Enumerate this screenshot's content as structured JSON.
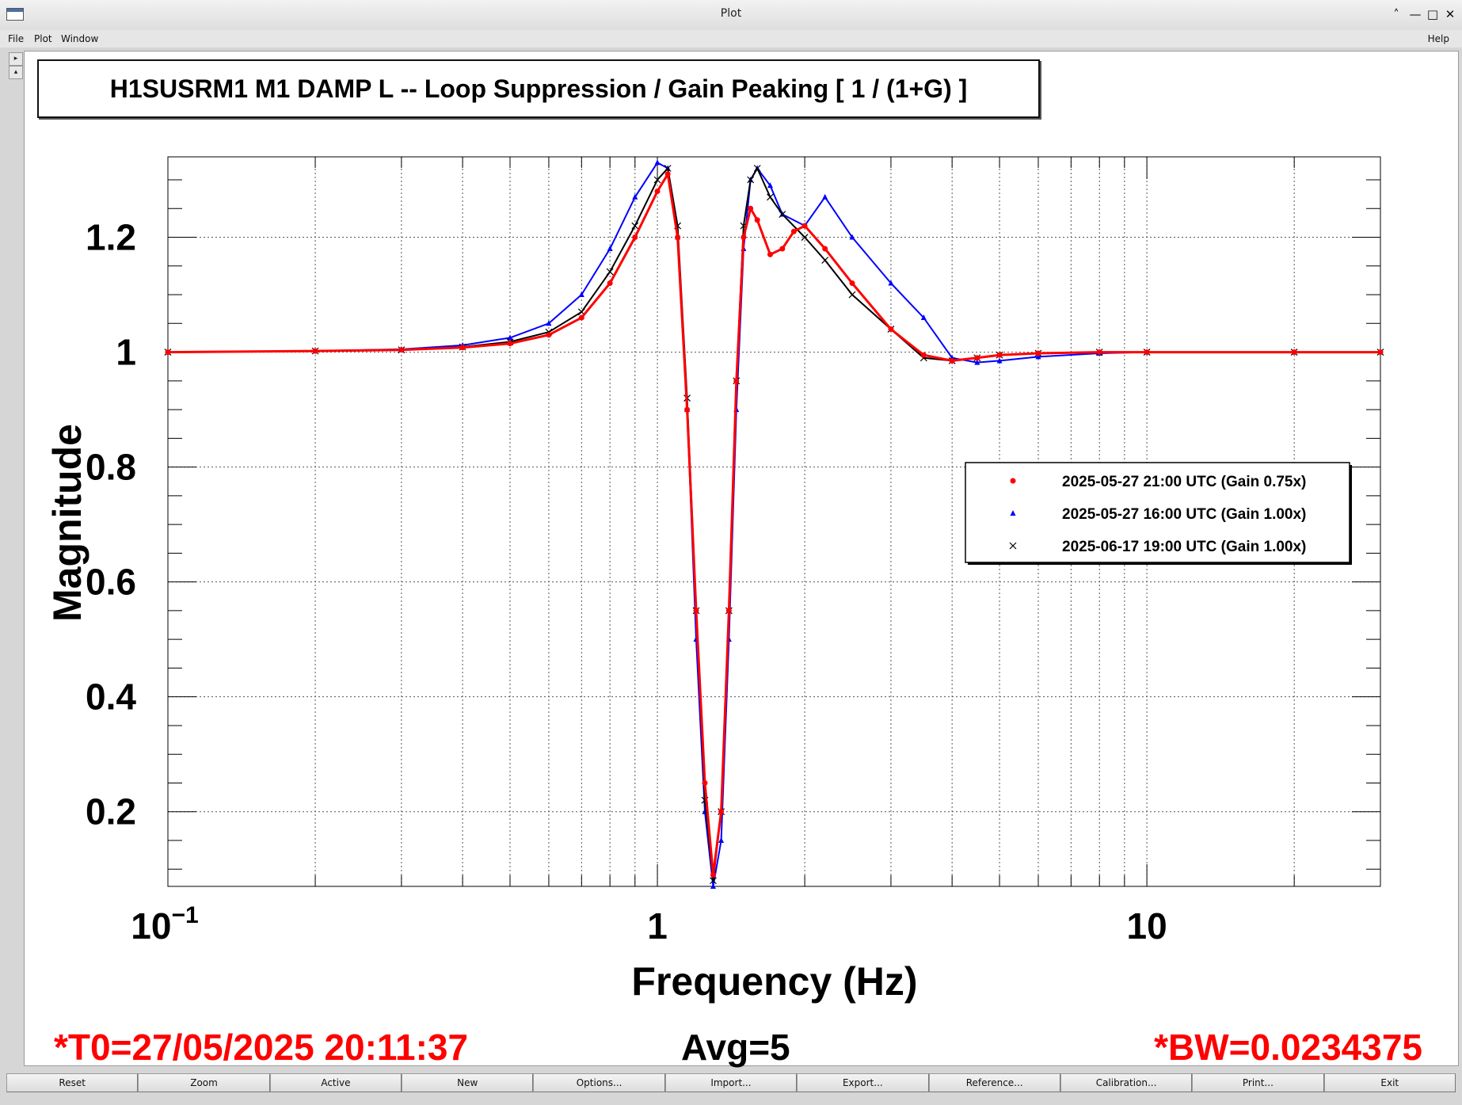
{
  "window": {
    "title": "Plot"
  },
  "menu": {
    "file": "File",
    "plot": "Plot",
    "window": "Window",
    "help": "Help"
  },
  "plot_title": "H1SUSRM1 M1 DAMP L -- Loop Suppression / Gain Peaking [ 1 / (1+G) ]",
  "footer": {
    "t0": "*T0=27/05/2025 20:11:37",
    "avg": "Avg=5",
    "bw": "*BW=0.0234375"
  },
  "buttons": [
    "Reset",
    "Zoom",
    "Active",
    "New",
    "Options...",
    "Import...",
    "Export...",
    "Reference...",
    "Calibration...",
    "Print...",
    "Exit"
  ],
  "chart_data": {
    "type": "line",
    "xlabel": "Frequency (Hz)",
    "ylabel": "Magnitude",
    "xscale": "log",
    "xlim": [
      0.1,
      30
    ],
    "ylim": [
      0.07,
      1.34
    ],
    "x_ticklabels": [
      "10^-1",
      "1",
      "10"
    ],
    "y_ticklabels": [
      "0.2",
      "0.4",
      "0.6",
      "0.8",
      "1",
      "1.2"
    ],
    "grid": true,
    "legend_placement": "right",
    "series": [
      {
        "name": "2025-05-27 21:00 UTC (Gain 0.75x)",
        "color": "#ff0000",
        "marker": "dot",
        "x": [
          0.1,
          0.2,
          0.3,
          0.4,
          0.5,
          0.6,
          0.7,
          0.8,
          0.9,
          1.0,
          1.05,
          1.1,
          1.15,
          1.2,
          1.25,
          1.3,
          1.35,
          1.4,
          1.45,
          1.5,
          1.55,
          1.6,
          1.7,
          1.8,
          1.9,
          2.0,
          2.2,
          2.5,
          3.0,
          3.5,
          4.0,
          4.5,
          5.0,
          6.0,
          8.0,
          10,
          20,
          30
        ],
        "y": [
          1.0,
          1.002,
          1.004,
          1.008,
          1.015,
          1.03,
          1.06,
          1.12,
          1.2,
          1.28,
          1.31,
          1.2,
          0.9,
          0.55,
          0.25,
          0.09,
          0.2,
          0.55,
          0.95,
          1.2,
          1.25,
          1.23,
          1.17,
          1.18,
          1.21,
          1.22,
          1.18,
          1.12,
          1.04,
          0.995,
          0.985,
          0.99,
          0.995,
          0.998,
          1.0,
          1.0,
          1.0,
          1.0
        ]
      },
      {
        "name": "2025-05-27 16:00 UTC (Gain 1.00x)",
        "color": "#0000ff",
        "marker": "triangle",
        "x": [
          0.1,
          0.2,
          0.3,
          0.4,
          0.5,
          0.6,
          0.7,
          0.8,
          0.9,
          1.0,
          1.05,
          1.1,
          1.15,
          1.2,
          1.25,
          1.3,
          1.35,
          1.4,
          1.45,
          1.5,
          1.55,
          1.6,
          1.7,
          1.8,
          2.0,
          2.2,
          2.5,
          3.0,
          3.5,
          4.0,
          4.5,
          5.0,
          6.0,
          8.0,
          10,
          20,
          30
        ],
        "y": [
          1.0,
          1.002,
          1.005,
          1.012,
          1.025,
          1.05,
          1.1,
          1.18,
          1.27,
          1.33,
          1.32,
          1.2,
          0.9,
          0.5,
          0.2,
          0.06,
          0.15,
          0.5,
          0.9,
          1.18,
          1.3,
          1.32,
          1.29,
          1.24,
          1.22,
          1.27,
          1.2,
          1.12,
          1.06,
          0.99,
          0.982,
          0.985,
          0.992,
          0.998,
          1.0,
          1.0,
          1.0
        ]
      },
      {
        "name": "2025-06-17 19:00 UTC (Gain 1.00x)",
        "color": "#000000",
        "marker": "x",
        "x": [
          0.1,
          0.2,
          0.3,
          0.4,
          0.5,
          0.6,
          0.7,
          0.8,
          0.9,
          1.0,
          1.05,
          1.1,
          1.15,
          1.2,
          1.25,
          1.3,
          1.35,
          1.4,
          1.45,
          1.5,
          1.55,
          1.6,
          1.7,
          1.8,
          2.0,
          2.2,
          2.5,
          3.0,
          3.5,
          4.0,
          4.5,
          5.0,
          6.0,
          8.0,
          10,
          20,
          30
        ],
        "y": [
          1.0,
          1.002,
          1.004,
          1.009,
          1.018,
          1.035,
          1.07,
          1.14,
          1.22,
          1.3,
          1.32,
          1.22,
          0.92,
          0.55,
          0.22,
          0.08,
          0.2,
          0.55,
          0.95,
          1.22,
          1.3,
          1.32,
          1.27,
          1.24,
          1.2,
          1.16,
          1.1,
          1.04,
          0.99,
          0.985,
          0.99,
          0.995,
          0.998,
          1.0,
          1.0,
          1.0,
          1.0
        ]
      }
    ]
  }
}
